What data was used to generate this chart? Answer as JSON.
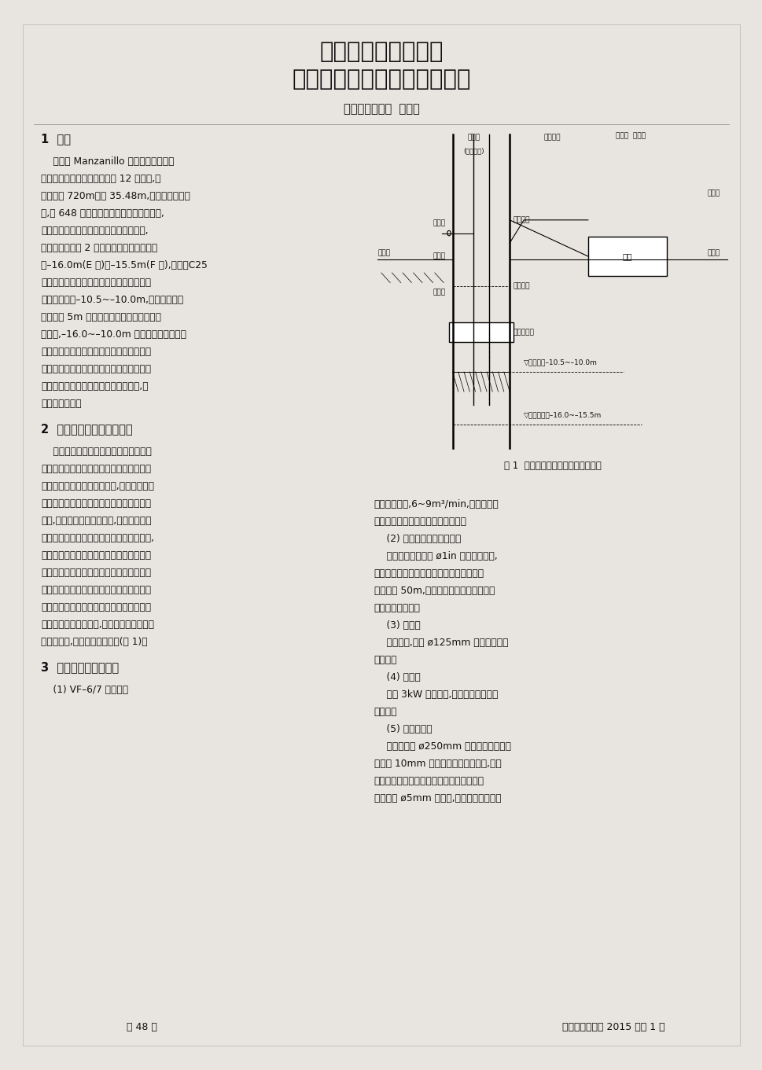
{
  "title_line1": "气举反循环清孔工艺",
  "title_line2": "在某集装箱码头工程中的应用",
  "author_line": "三航南京分公司  史金刚",
  "section1_head": "1  前言",
  "section1_body": [
    "    墨西哥 Manzanillo 港集装箱码头工程",
    "水工码头为高桩梁板结构，共 12 个分段,码",
    "头岸线长 720m、宽 35.48m,码头桩基为钢管",
    "桩,共 648 根。由于工程处于地震多发地带,",
    "在抗震计算满足规范及设计要求的前提下,",
    "要求将码头后沿 2 排钢管桩内孔底标高清孔",
    "至–16.0m(E 排)和–15.5m(F 排),并浇筑C25",
    "素混凝土以加强码头结构的抗震性能。桩内",
    "原泥面标高为–10.5~–10.0m,故桩内平均清",
    "孔深度在 5m 左右。经过对该项目地质资料",
    "的分析,–16.0~–10.0m 深度范围内主要为淤",
    "泥质粉砂和淤泥质粉土层，另外根据当地的",
    "设备资源情况，项目部决定采取气举反循环",
    "清孔工艺来清除钢管桩内的淤泥及粉砂,以",
    "达到设计标高。"
  ],
  "section2_head": "2  气举反循环清孔工艺原理",
  "section2_body": [
    "    气举反循环清孔是利用空压机的压缩空",
    "气，通过风管送至安装在导管底端的浆气混",
    "合器内。高压气与泥浆混合后,在混合器内形",
    "成一种密度小于泥浆的浆气混合物，因比重",
    "较小,浆气混合物沿导管上升,在混合器底端",
    "形成负压，下面的泥浆在负压的作用下上升,",
    "并在气压动量的联合作用下不断补浆，进入",
    "混合器的泥浆与气体形成浆气混合物后继续",
    "上升形成流动。因导管的内断面积远小于导",
    "管外壁与桩壁间的环状断面积，便形成了流",
    "速、流量极大的反循环,携带泥浆或泥沙排出",
    "至桩孔以外,以达到清孔的目的(图 1)。"
  ],
  "section3_head": "3  气举反循环清孔机具",
  "section3_sub1": "    (1) VF–6/7 型空压机",
  "right_col_lines": [
    "提供压缩空气,6~9m³/min,并配备储气",
    "罐、压力表、排气开关和送气开关。",
    "    (2) 输送压缩空气的送气管",
    "    为移动方便，采用 ø1in 橡胶高压软管,",
    "所需长度视混合器沉没深度而定，但总长度",
    "不宜超过 50m,以减少风压损失。送气管固",
    "定于排碴管上方。",
    "    (3) 排碴管",
    "    也称导管,采用 ø125mm 混凝土泵管连",
    "接而成。",
    "    (4) 清水泵",
    "    采用 3kW 的潜水泵,用于对钢管桩内进",
    "行补水。",
    "    (5) 浆气混合器",
    "    混合器采用 ø250mm 钢管制成，上、下",
    "两端用 10mm 钢板沿排碴管焊接封堵,并用",
    "带丝口钢管从上端引出与送风管连接，排碴",
    "管周围钻 ø5mm 排气孔,排气孔与排碴管中"
  ],
  "fig_caption": "图 1  气举反循环清孔工艺原理示意图",
  "page_num": "－ 48 －",
  "journal_ref": "港工技术与管理 2015 年第 1 期"
}
